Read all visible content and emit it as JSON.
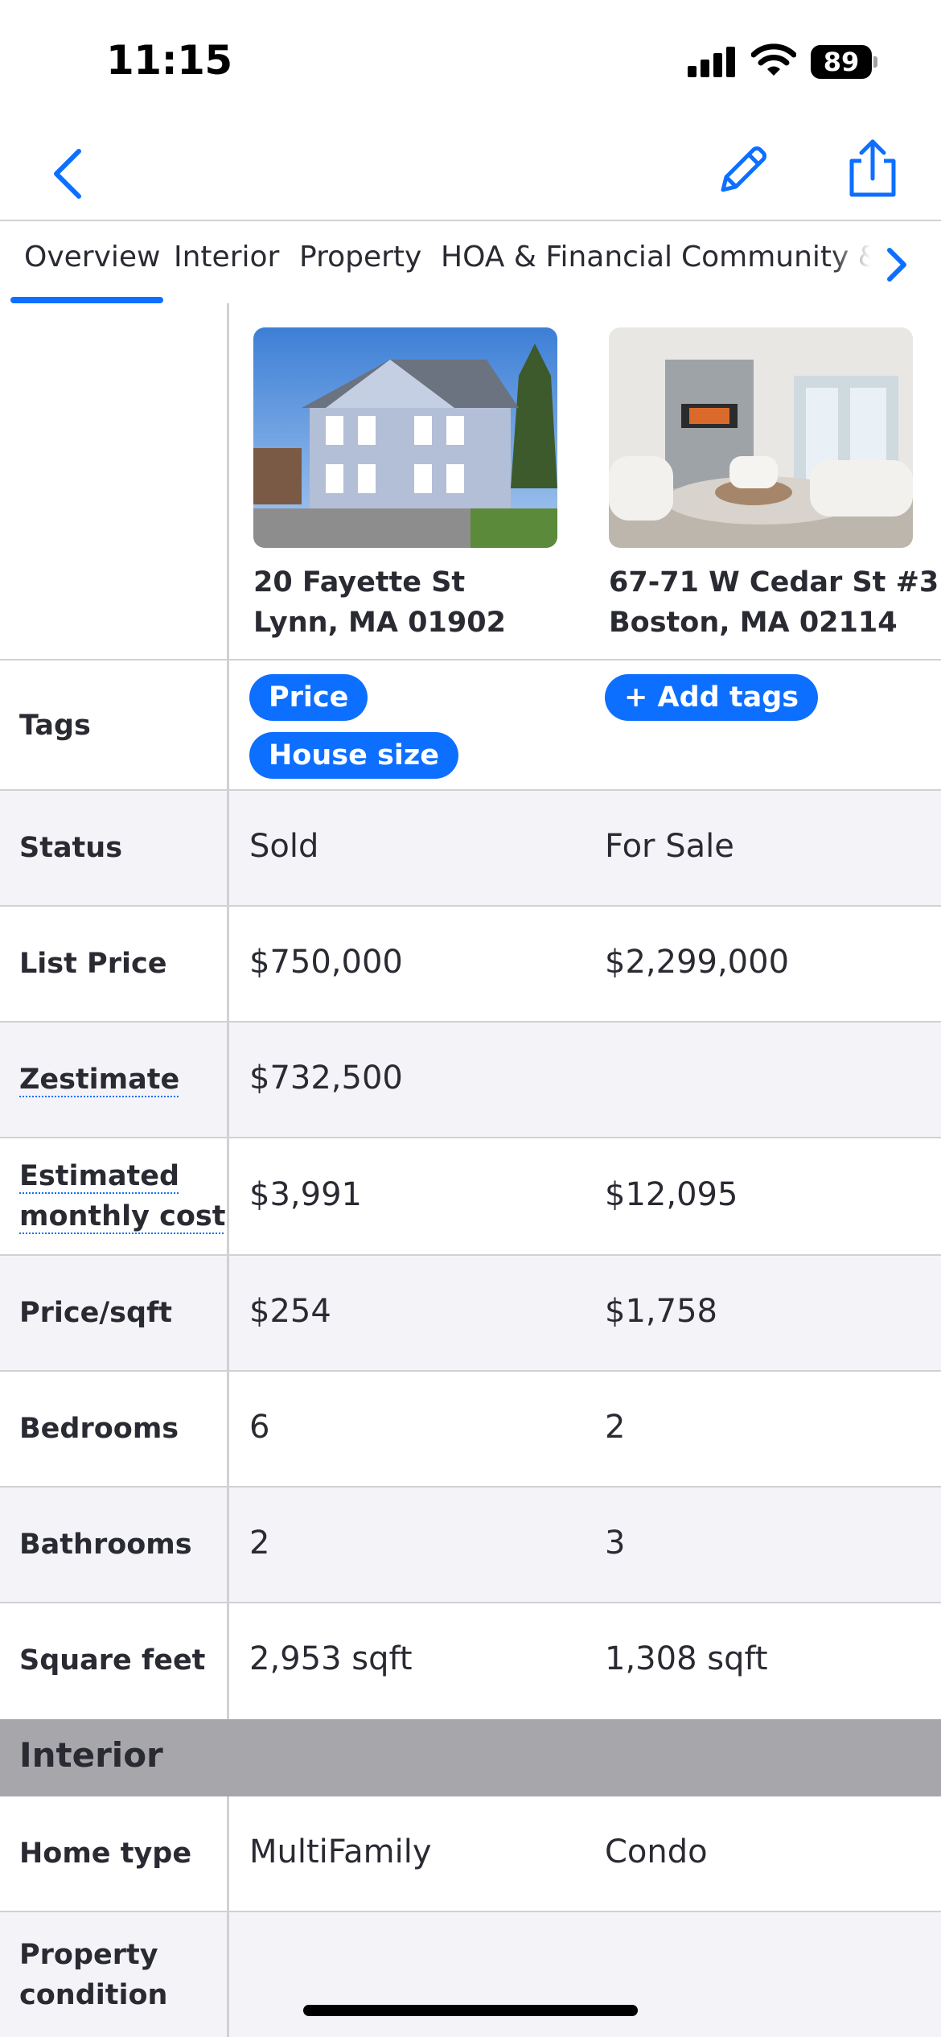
{
  "status_bar": {
    "time": "11:15",
    "battery": "89"
  },
  "tabs": [
    {
      "label": "Overview",
      "active": true
    },
    {
      "label": "Interior"
    },
    {
      "label": "Property"
    },
    {
      "label": "HOA & Financial"
    },
    {
      "label": "Community &"
    }
  ],
  "homes": [
    {
      "address_line1": "20 Fayette St",
      "address_line2": "Lynn, MA 01902"
    },
    {
      "address_line1": "67-71 W Cedar St #3",
      "address_line2": "Boston, MA 02114"
    }
  ],
  "tags": {
    "label": "Tags",
    "home1": [
      "Price",
      "House size"
    ],
    "add_tags": "+ Add tags"
  },
  "rows": {
    "status": {
      "label": "Status",
      "v1": "Sold",
      "v2": "For Sale"
    },
    "list_price": {
      "label": "List Price",
      "v1": "$750,000",
      "v2": "$2,299,000"
    },
    "zestimate": {
      "label": "Zestimate",
      "v1": "$732,500",
      "v2": ""
    },
    "monthly": {
      "label_line1": "Estimated",
      "label_line2": "monthly cost",
      "v1": "$3,991",
      "v2": "$12,095"
    },
    "price_sqft": {
      "label": "Price/sqft",
      "v1": "$254",
      "v2": "$1,758"
    },
    "bedrooms": {
      "label": "Bedrooms",
      "v1": "6",
      "v2": "2"
    },
    "bathrooms": {
      "label": "Bathrooms",
      "v1": "2",
      "v2": "3"
    },
    "sqft": {
      "label": "Square feet",
      "v1": "2,953 sqft",
      "v2": "1,308 sqft"
    }
  },
  "interior": {
    "title": "Interior",
    "home_type": {
      "label": "Home type",
      "v1": "MultiFamily",
      "v2": "Condo"
    },
    "condition": {
      "label_line1": "Property",
      "label_line2": "condition"
    }
  },
  "colors": {
    "accent": "#0d6fff",
    "text": "#2a2a33",
    "shade": "#f4f4f8",
    "section": "#a7a7ab"
  }
}
